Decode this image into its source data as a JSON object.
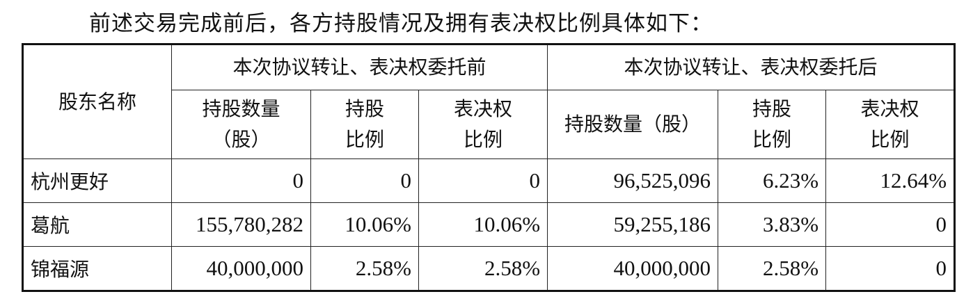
{
  "intro": "前述交易完成前后，各方持股情况及拥有表决权比例具体如下：",
  "table": {
    "header_name": "股东名称",
    "group_before": "本次协议转让、表决权委托前",
    "group_after": "本次协议转让、表决权委托后",
    "sub_before": [
      "持股数量（股）",
      "持股比例",
      "表决权比例"
    ],
    "sub_after": [
      "持股数量（股）",
      "持股比例",
      "表决权比例"
    ],
    "sub_before_lines": [
      [
        "持股数量",
        "（股）"
      ],
      [
        "持股",
        "比例"
      ],
      [
        "表决权",
        "比例"
      ]
    ],
    "sub_after_lines": [
      [
        "持股数量（股）"
      ],
      [
        "持股",
        "比例"
      ],
      [
        "表决权",
        "比例"
      ]
    ],
    "rows": [
      {
        "name": "杭州更好",
        "values": [
          "0",
          "0",
          "0",
          "96,525,096",
          "6.23%",
          "12.64%"
        ]
      },
      {
        "name": "葛航",
        "values": [
          "155,780,282",
          "10.06%",
          "10.06%",
          "59,255,186",
          "3.83%",
          "0"
        ]
      },
      {
        "name": "锦福源",
        "values": [
          "40,000,000",
          "2.58%",
          "2.58%",
          "40,000,000",
          "2.58%",
          "0"
        ]
      }
    ]
  }
}
